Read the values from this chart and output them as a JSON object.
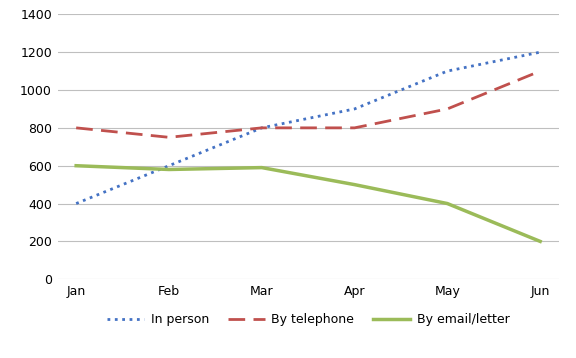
{
  "months": [
    "Jan",
    "Feb",
    "Mar",
    "Apr",
    "May",
    "Jun"
  ],
  "in_person": [
    400,
    600,
    800,
    900,
    1100,
    1200
  ],
  "by_telephone": [
    800,
    750,
    800,
    800,
    900,
    1100
  ],
  "by_email_letter": [
    600,
    580,
    590,
    500,
    400,
    200
  ],
  "ylim": [
    0,
    1400
  ],
  "yticks": [
    0,
    200,
    400,
    600,
    800,
    1000,
    1200,
    1400
  ],
  "color_in_person": "#4472C4",
  "color_telephone": "#C0504D",
  "color_email": "#9BBB59",
  "legend_labels": [
    "In person",
    "By telephone",
    "By email/letter"
  ],
  "background_color": "#FFFFFF",
  "grid_color": "#BFBFBF"
}
